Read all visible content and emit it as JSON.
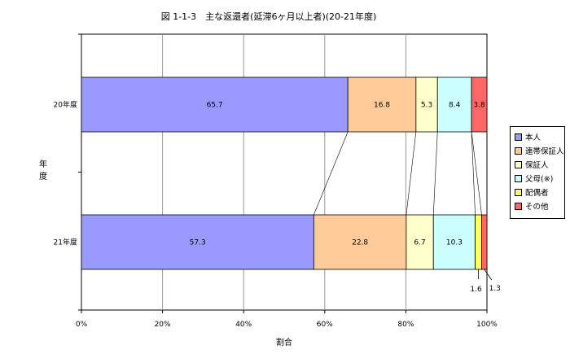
{
  "chart_data": {
    "type": "bar",
    "orientation": "horizontal",
    "stacked": true,
    "title": "図 1-1-3　主な返還者(延滞6ヶ月以上者)(20-21年度)",
    "xlabel": "割合",
    "ylabel": "年度",
    "xlim": [
      0,
      100
    ],
    "x_ticks": [
      "0%",
      "20%",
      "40%",
      "60%",
      "80%",
      "100%"
    ],
    "grid": true,
    "legend_position": "right",
    "categories": [
      "20年度",
      "21年度"
    ],
    "series": [
      {
        "name": "本人",
        "color": "#9999FF",
        "values": [
          65.7,
          57.3
        ],
        "labels": [
          "65.7",
          "57.3"
        ]
      },
      {
        "name": "連帯保証人",
        "color": "#FFCC99",
        "values": [
          16.8,
          22.8
        ],
        "labels": [
          "16.8",
          "22.8"
        ]
      },
      {
        "name": "保証人",
        "color": "#FFFFCC",
        "values": [
          5.3,
          6.7
        ],
        "labels": [
          "5.3",
          "6.7"
        ]
      },
      {
        "name": "父母(※)",
        "color": "#CCFFFF",
        "values": [
          8.4,
          10.3
        ],
        "labels": [
          "8.4",
          "10.3"
        ]
      },
      {
        "name": "配偶者",
        "color": "#FFFF66",
        "values": [
          0,
          1.6
        ],
        "labels": [
          "",
          "1.6"
        ]
      },
      {
        "name": "その他",
        "color": "#FF6666",
        "values": [
          3.8,
          1.3
        ],
        "labels": [
          "3.8",
          "1.3"
        ]
      }
    ]
  }
}
